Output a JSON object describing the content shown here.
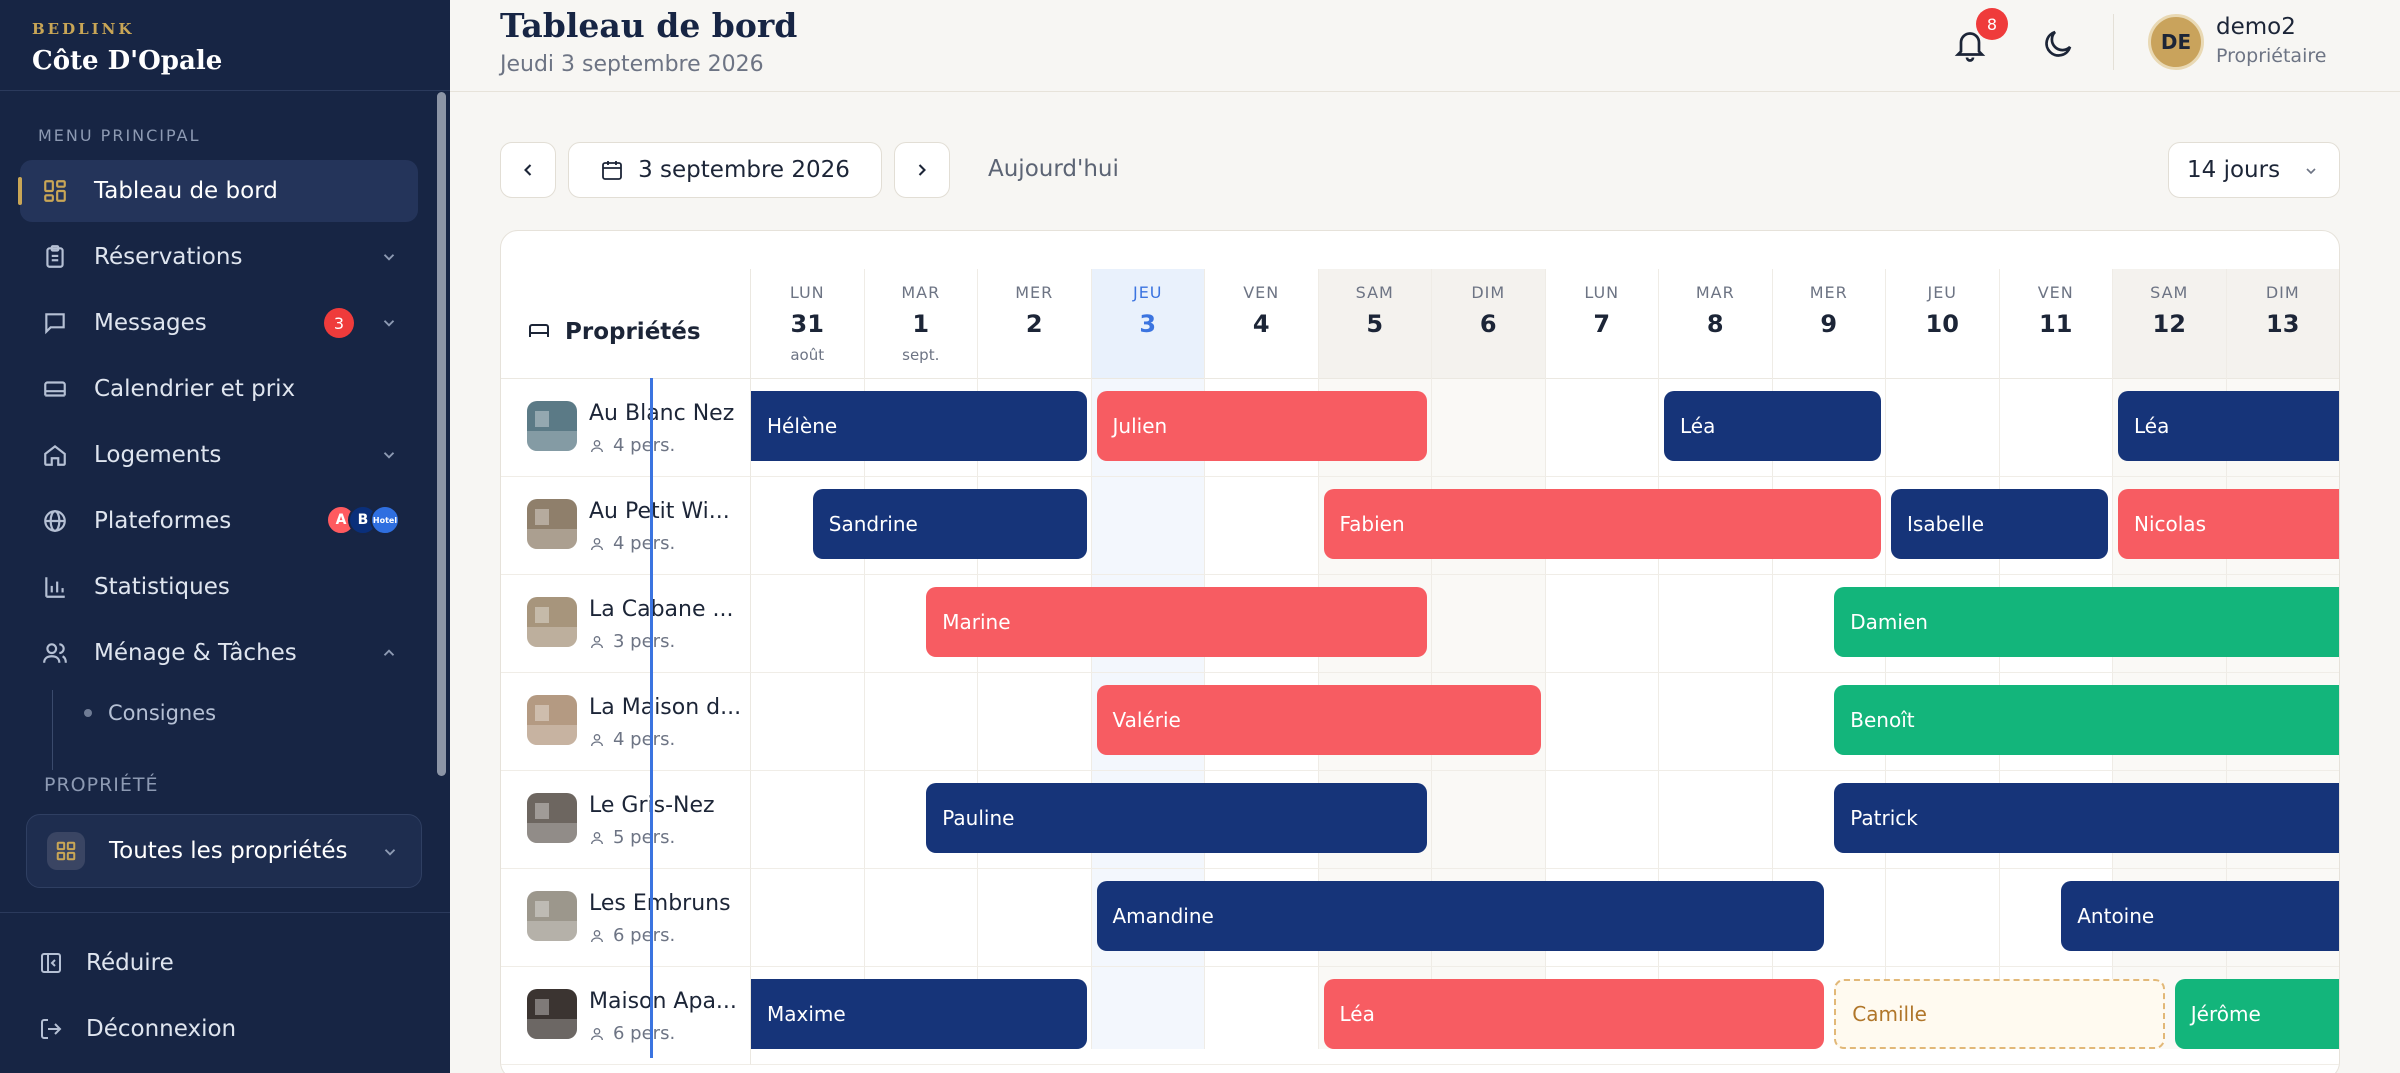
{
  "brand": {
    "small": "BEDLINK",
    "title": "Côte D'Opale"
  },
  "sidebar": {
    "menu_label": "MENU PRINCIPAL",
    "items": [
      {
        "label": "Tableau de bord",
        "icon": "grid-icon"
      },
      {
        "label": "Réservations",
        "icon": "clipboard-icon"
      },
      {
        "label": "Messages",
        "icon": "chat-icon",
        "badge": "3"
      },
      {
        "label": "Calendrier et prix",
        "icon": "bed-icon"
      },
      {
        "label": "Logements",
        "icon": "home-icon"
      },
      {
        "label": "Plateformes",
        "icon": "globe-icon",
        "platforms": [
          "A",
          "B",
          "Hotel"
        ]
      },
      {
        "label": "Statistiques",
        "icon": "bar-chart-icon"
      },
      {
        "label": "Ménage & Tâches",
        "icon": "users-icon"
      }
    ],
    "sub_items": [
      "Consignes"
    ],
    "property_label": "PROPRIÉTÉ",
    "property_select": "Toutes les propriétés",
    "collapse": "Réduire",
    "logout": "Déconnexion"
  },
  "header": {
    "title": "Tableau de bord",
    "date": "Jeudi 3 septembre 2026",
    "notif_count": "8",
    "user": {
      "initials": "DE",
      "name": "demo2",
      "role": "Propriétaire"
    }
  },
  "toolbar": {
    "date": "3 septembre 2026",
    "today": "Aujourd'hui",
    "range": "14 jours"
  },
  "calendar": {
    "properties_header": "Propriétés",
    "days": [
      {
        "name": "LUN",
        "num": "31",
        "month": "août"
      },
      {
        "name": "MAR",
        "num": "1",
        "month": "sept."
      },
      {
        "name": "MER",
        "num": "2",
        "month": ""
      },
      {
        "name": "JEU",
        "num": "3",
        "month": "",
        "today": true
      },
      {
        "name": "VEN",
        "num": "4",
        "month": ""
      },
      {
        "name": "SAM",
        "num": "5",
        "month": ""
      },
      {
        "name": "DIM",
        "num": "6",
        "month": ""
      },
      {
        "name": "LUN",
        "num": "7",
        "month": ""
      },
      {
        "name": "MAR",
        "num": "8",
        "month": ""
      },
      {
        "name": "MER",
        "num": "9",
        "month": ""
      },
      {
        "name": "JEU",
        "num": "10",
        "month": ""
      },
      {
        "name": "VEN",
        "num": "11",
        "month": ""
      },
      {
        "name": "SAM",
        "num": "12",
        "month": ""
      },
      {
        "name": "DIM",
        "num": "13",
        "month": ""
      }
    ],
    "properties": [
      {
        "name": "Au Blanc Nez",
        "capacity": "4 pers.",
        "thumb": "#5b7a86",
        "bookings": [
          {
            "guest": "Hélène",
            "start": -0.5,
            "end": 3.0,
            "color": "blue"
          },
          {
            "guest": "Julien",
            "start": 3.0,
            "end": 6.0,
            "color": "red"
          },
          {
            "guest": "Léa",
            "start": 8.0,
            "end": 10.0,
            "color": "blue"
          },
          {
            "guest": "Léa",
            "start": 12.0,
            "end": 14.5,
            "color": "blue"
          }
        ]
      },
      {
        "name": "Au Petit Wi...",
        "capacity": "4 pers.",
        "thumb": "#8f7f6b",
        "bookings": [
          {
            "guest": "Sandrine",
            "start": 0.5,
            "end": 3.0,
            "color": "blue"
          },
          {
            "guest": "Fabien",
            "start": 5.0,
            "end": 10.0,
            "color": "red"
          },
          {
            "guest": "Isabelle",
            "start": 10.0,
            "end": 12.0,
            "color": "blue"
          },
          {
            "guest": "Nicolas",
            "start": 12.0,
            "end": 14.5,
            "color": "red"
          }
        ]
      },
      {
        "name": "La Cabane ...",
        "capacity": "3 pers.",
        "thumb": "#a7957c",
        "bookings": [
          {
            "guest": "Marine",
            "start": 1.5,
            "end": 6.0,
            "color": "red"
          },
          {
            "guest": "Damien",
            "start": 9.5,
            "end": 14.5,
            "color": "green"
          }
        ]
      },
      {
        "name": "La Maison d...",
        "capacity": "4 pers.",
        "thumb": "#b49a82",
        "bookings": [
          {
            "guest": "Valérie",
            "start": 3.0,
            "end": 7.0,
            "color": "red"
          },
          {
            "guest": "Benoît",
            "start": 9.5,
            "end": 14.5,
            "color": "green"
          }
        ]
      },
      {
        "name": "Le Gris-Nez",
        "capacity": "5 pers.",
        "thumb": "#6d6660",
        "bookings": [
          {
            "guest": "Pauline",
            "start": 1.5,
            "end": 6.0,
            "color": "blue"
          },
          {
            "guest": "Patrick",
            "start": 9.5,
            "end": 14.5,
            "color": "blue"
          }
        ]
      },
      {
        "name": "Les Embruns",
        "capacity": "6 pers.",
        "thumb": "#9c978c",
        "bookings": [
          {
            "guest": "Amandine",
            "start": 3.0,
            "end": 9.5,
            "color": "blue"
          },
          {
            "guest": "Antoine",
            "start": 11.5,
            "end": 14.5,
            "color": "blue"
          }
        ]
      },
      {
        "name": "Maison Apa...",
        "capacity": "6 pers.",
        "thumb": "#3b3431",
        "bookings": [
          {
            "guest": "Maxime",
            "start": -0.5,
            "end": 3.0,
            "color": "blue"
          },
          {
            "guest": "Léa",
            "start": 5.0,
            "end": 9.5,
            "color": "red"
          },
          {
            "guest": "Camille",
            "start": 9.5,
            "end": 12.5,
            "color": "pending"
          },
          {
            "guest": "Jérôme",
            "start": 12.5,
            "end": 14.5,
            "color": "green"
          }
        ]
      }
    ]
  },
  "colors": {
    "navy": "#172544",
    "gold": "#c9a656",
    "blue": "#163479",
    "red": "#f75c62",
    "green": "#13b57b",
    "today": "#3b74e0"
  }
}
